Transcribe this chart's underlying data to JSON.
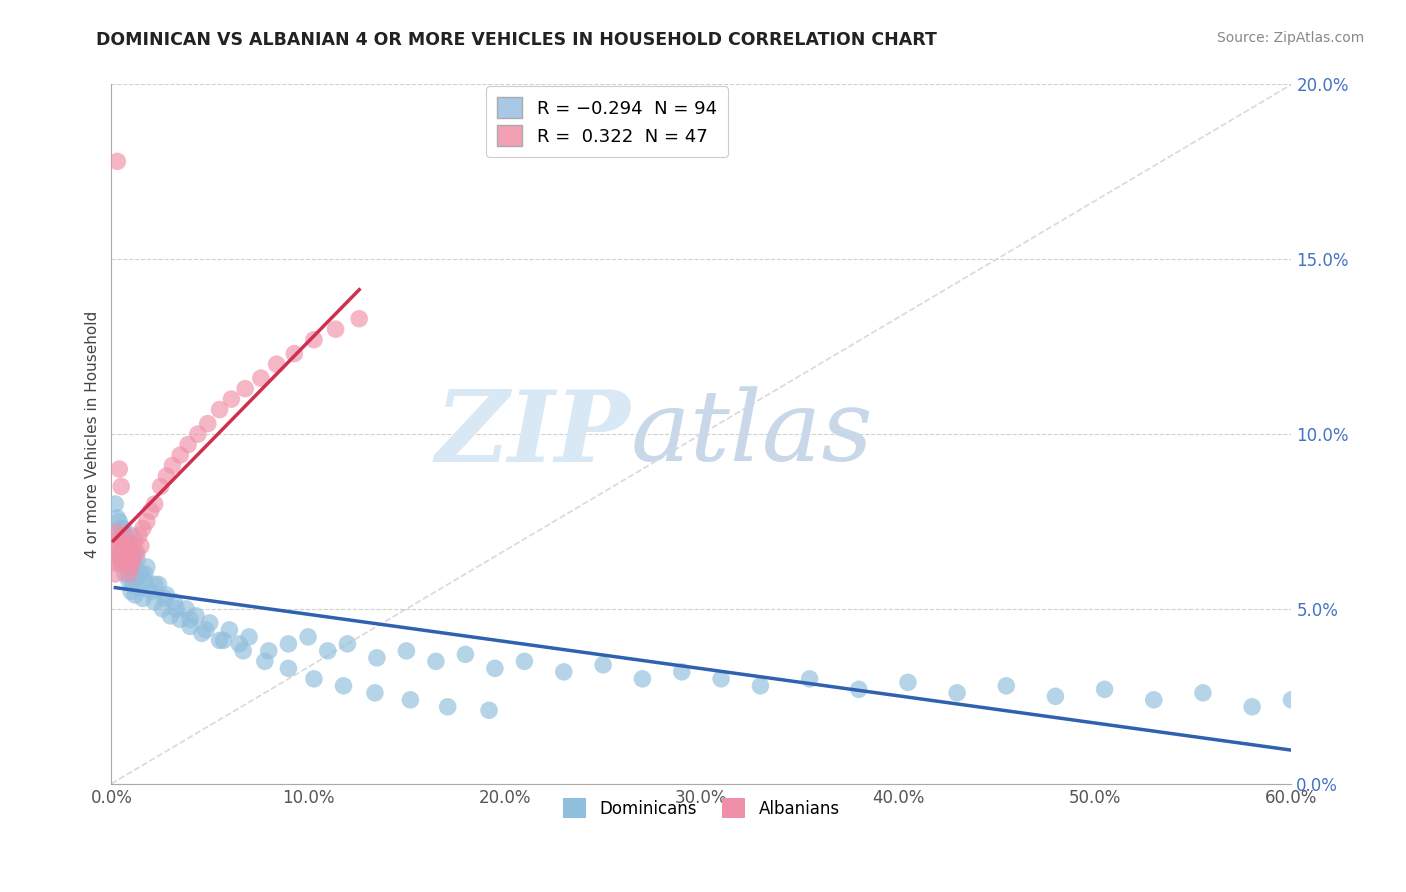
{
  "title": "DOMINICAN VS ALBANIAN 4 OR MORE VEHICLES IN HOUSEHOLD CORRELATION CHART",
  "source": "Source: ZipAtlas.com",
  "ylabel": "4 or more Vehicles in Household",
  "xlim": [
    0.0,
    0.6
  ],
  "ylim": [
    0.0,
    0.2
  ],
  "xticks": [
    0.0,
    0.1,
    0.2,
    0.3,
    0.4,
    0.5,
    0.6
  ],
  "xticklabels": [
    "0.0%",
    "10.0%",
    "20.0%",
    "30.0%",
    "40.0%",
    "50.0%",
    "60.0%"
  ],
  "yticks": [
    0.0,
    0.05,
    0.1,
    0.15,
    0.2
  ],
  "yticklabels": [
    "0.0%",
    "5.0%",
    "10.0%",
    "15.0%",
    "20.0%"
  ],
  "legend_r_entries": [
    {
      "label": "R = −0.294  N = 94",
      "color": "#a8c8e8"
    },
    {
      "label": "R =  0.322  N = 47",
      "color": "#f4a0b4"
    }
  ],
  "legend_labels": [
    "Dominicans",
    "Albanians"
  ],
  "dominican_color": "#90bedd",
  "albanian_color": "#f090a8",
  "trendline_dominican_color": "#3060b0",
  "trendline_albanian_color": "#d03050",
  "diagonal_color": "#d0d0d0",
  "background_color": "#ffffff",
  "watermark_zip": "ZIP",
  "watermark_atlas": "atlas",
  "dominican_x": [
    0.002,
    0.003,
    0.004,
    0.004,
    0.005,
    0.005,
    0.006,
    0.006,
    0.007,
    0.007,
    0.008,
    0.008,
    0.009,
    0.009,
    0.01,
    0.01,
    0.01,
    0.011,
    0.011,
    0.012,
    0.012,
    0.013,
    0.014,
    0.015,
    0.016,
    0.017,
    0.018,
    0.02,
    0.022,
    0.024,
    0.026,
    0.028,
    0.03,
    0.032,
    0.035,
    0.038,
    0.04,
    0.043,
    0.046,
    0.05,
    0.055,
    0.06,
    0.065,
    0.07,
    0.08,
    0.09,
    0.1,
    0.11,
    0.12,
    0.135,
    0.15,
    0.165,
    0.18,
    0.195,
    0.21,
    0.23,
    0.25,
    0.27,
    0.29,
    0.31,
    0.33,
    0.355,
    0.38,
    0.405,
    0.43,
    0.455,
    0.48,
    0.505,
    0.53,
    0.555,
    0.58,
    0.6,
    0.002,
    0.003,
    0.005,
    0.007,
    0.01,
    0.013,
    0.017,
    0.022,
    0.027,
    0.033,
    0.04,
    0.048,
    0.057,
    0.067,
    0.078,
    0.09,
    0.103,
    0.118,
    0.134,
    0.152,
    0.171,
    0.192
  ],
  "dominican_y": [
    0.072,
    0.068,
    0.065,
    0.075,
    0.063,
    0.07,
    0.067,
    0.073,
    0.06,
    0.066,
    0.062,
    0.069,
    0.058,
    0.064,
    0.055,
    0.061,
    0.071,
    0.057,
    0.063,
    0.054,
    0.066,
    0.059,
    0.056,
    0.06,
    0.053,
    0.058,
    0.062,
    0.055,
    0.052,
    0.057,
    0.05,
    0.054,
    0.048,
    0.052,
    0.047,
    0.05,
    0.045,
    0.048,
    0.043,
    0.046,
    0.041,
    0.044,
    0.04,
    0.042,
    0.038,
    0.04,
    0.042,
    0.038,
    0.04,
    0.036,
    0.038,
    0.035,
    0.037,
    0.033,
    0.035,
    0.032,
    0.034,
    0.03,
    0.032,
    0.03,
    0.028,
    0.03,
    0.027,
    0.029,
    0.026,
    0.028,
    0.025,
    0.027,
    0.024,
    0.026,
    0.022,
    0.024,
    0.08,
    0.076,
    0.073,
    0.07,
    0.067,
    0.064,
    0.06,
    0.057,
    0.053,
    0.05,
    0.047,
    0.044,
    0.041,
    0.038,
    0.035,
    0.033,
    0.03,
    0.028,
    0.026,
    0.024,
    0.022,
    0.021
  ],
  "albanian_x": [
    0.001,
    0.002,
    0.002,
    0.003,
    0.003,
    0.004,
    0.004,
    0.005,
    0.005,
    0.006,
    0.006,
    0.007,
    0.007,
    0.008,
    0.008,
    0.009,
    0.009,
    0.01,
    0.01,
    0.011,
    0.012,
    0.013,
    0.014,
    0.015,
    0.016,
    0.018,
    0.02,
    0.022,
    0.025,
    0.028,
    0.031,
    0.035,
    0.039,
    0.044,
    0.049,
    0.055,
    0.061,
    0.068,
    0.076,
    0.084,
    0.093,
    0.103,
    0.114,
    0.126,
    0.003,
    0.004,
    0.005
  ],
  "albanian_y": [
    0.065,
    0.068,
    0.06,
    0.063,
    0.072,
    0.066,
    0.07,
    0.064,
    0.069,
    0.063,
    0.067,
    0.065,
    0.071,
    0.063,
    0.068,
    0.06,
    0.065,
    0.062,
    0.067,
    0.064,
    0.069,
    0.066,
    0.071,
    0.068,
    0.073,
    0.075,
    0.078,
    0.08,
    0.085,
    0.088,
    0.091,
    0.094,
    0.097,
    0.1,
    0.103,
    0.107,
    0.11,
    0.113,
    0.116,
    0.12,
    0.123,
    0.127,
    0.13,
    0.133,
    0.178,
    0.09,
    0.085
  ]
}
